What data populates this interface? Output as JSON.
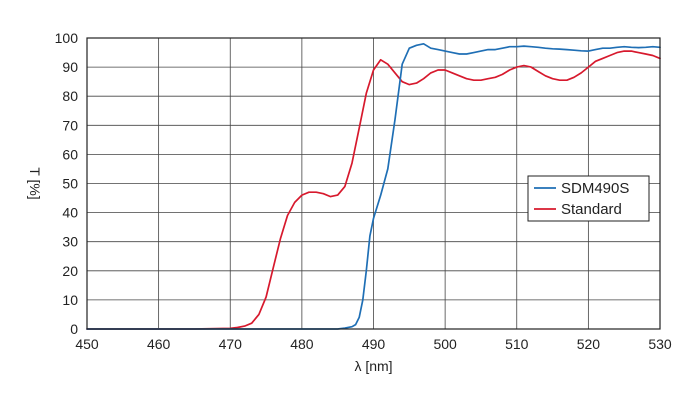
{
  "chart_data": {
    "type": "line",
    "title": "",
    "xlabel": "λ [nm]",
    "ylabel": "T [%]",
    "xlim": [
      450,
      530
    ],
    "ylim": [
      0,
      100
    ],
    "xticks": [
      450,
      460,
      470,
      480,
      490,
      500,
      510,
      520,
      530
    ],
    "yticks": [
      0,
      10,
      20,
      30,
      40,
      50,
      60,
      70,
      80,
      90,
      100
    ],
    "grid": true,
    "legend_position": "right",
    "series": [
      {
        "name": "SDM490S",
        "color": "#1f6fb5",
        "x": [
          450,
          470,
          480,
          485,
          486,
          487,
          487.5,
          488,
          488.5,
          489,
          489.5,
          490,
          491,
          492,
          493,
          494,
          495,
          496,
          497,
          498,
          499,
          500,
          501,
          502,
          503,
          504,
          505,
          506,
          507,
          508,
          509,
          510,
          511,
          512,
          513,
          514,
          515,
          516,
          517,
          518,
          519,
          520,
          521,
          522,
          523,
          524,
          525,
          526,
          527,
          528,
          529,
          530
        ],
        "y": [
          0,
          0,
          0,
          0,
          0.3,
          0.8,
          1.5,
          4,
          10,
          20,
          32,
          38,
          46,
          55,
          72,
          91,
          96.5,
          97.5,
          98,
          96.5,
          96,
          95.5,
          95,
          94.5,
          94.5,
          95,
          95.5,
          96,
          96,
          96.5,
          97,
          97,
          97.2,
          97,
          96.8,
          96.5,
          96.3,
          96.2,
          96,
          95.8,
          95.6,
          95.5,
          96,
          96.5,
          96.5,
          96.8,
          97,
          96.8,
          96.7,
          96.8,
          97,
          96.8
        ]
      },
      {
        "name": "Standard",
        "color": "#d7192d",
        "x": [
          450,
          465,
          470,
          471,
          472,
          473,
          474,
          475,
          476,
          477,
          478,
          479,
          480,
          481,
          482,
          483,
          484,
          485,
          486,
          487,
          488,
          489,
          490,
          491,
          492,
          493,
          494,
          495,
          496,
          497,
          498,
          499,
          500,
          501,
          502,
          503,
          504,
          505,
          506,
          507,
          508,
          509,
          510,
          511,
          512,
          513,
          514,
          515,
          516,
          517,
          518,
          519,
          520,
          521,
          522,
          523,
          524,
          525,
          526,
          527,
          528,
          529,
          530
        ],
        "y": [
          0,
          0,
          0.2,
          0.5,
          1,
          2,
          5,
          11,
          21,
          31,
          39,
          43.5,
          46,
          47,
          47,
          46.5,
          45.5,
          46,
          49,
          57,
          69,
          81,
          89,
          92.5,
          91,
          88,
          85,
          84,
          84.5,
          86,
          88,
          89,
          89,
          88,
          87,
          86,
          85.5,
          85.5,
          86,
          86.5,
          87.5,
          89,
          90,
          90.5,
          90,
          88.5,
          87,
          86,
          85.5,
          85.5,
          86.5,
          88,
          90,
          92,
          93,
          94,
          95,
          95.5,
          95.5,
          95,
          94.5,
          94,
          93
        ]
      }
    ]
  }
}
